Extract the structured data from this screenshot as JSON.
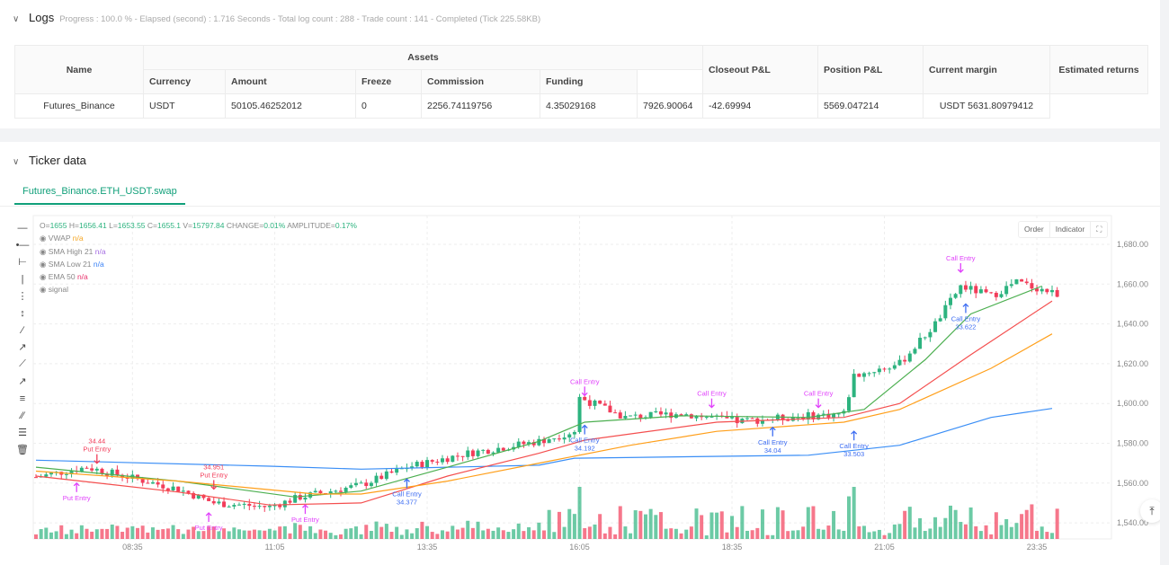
{
  "logs": {
    "title": "Logs",
    "summary": "Progress : 100.0 % - Elapsed (second) : 1.716  Seconds - Total log count : 288 - Trade count : 141 - Completed (Tick 225.58KB)"
  },
  "table": {
    "group_header": "Assets",
    "headers": {
      "name": "Name",
      "currency": "Currency",
      "amount": "Amount",
      "freeze": "Freeze",
      "commission": "Commission",
      "funding": "Funding",
      "closeout": "Closeout P&L",
      "position": "Position P&L",
      "margin": "Current margin",
      "returns": "Estimated returns"
    },
    "row": {
      "name": "Futures_Binance",
      "currency": "USDT",
      "amount": "50105.46252012",
      "freeze": "0",
      "commission": "2256.74119756",
      "funding": "4.35029168",
      "closeout": "7926.90064",
      "position": "-42.69994",
      "margin": "5569.047214",
      "returns": "USDT 5631.80979412"
    }
  },
  "ticker": {
    "title": "Ticker data",
    "tab": "Futures_Binance.ETH_USDT.swap"
  },
  "ohlc": {
    "o_label": "O=",
    "o": "1655",
    "h_label": "H=",
    "h": "1656.41",
    "l_label": "L=",
    "l": "1653.55",
    "c_label": "C=",
    "c": "1655.1",
    "v_label": "V=",
    "v": "15797.84",
    "change_label": "CHANGE=",
    "change": "0.01%",
    "amp_label": "AMPLITUDE=",
    "amp": "0.17%"
  },
  "indicators": [
    {
      "name": "VWAP",
      "value": "n/a",
      "color": "#f5a623"
    },
    {
      "name": "SMA High 21",
      "value": "n/a",
      "color": "#a56de2"
    },
    {
      "name": "SMA Low 21",
      "value": "n/a",
      "color": "#3b82f6"
    },
    {
      "name": "EMA 50",
      "value": "n/a",
      "color": "#e8336d"
    },
    {
      "name": "signal",
      "value": "",
      "color": "#888"
    }
  ],
  "chart_buttons": {
    "order": "Order",
    "indicator": "Indicator"
  },
  "colors": {
    "up": "#2db37f",
    "down": "#f23d5a",
    "vwap": "#3a8ef6",
    "sma_high": "#4caf50",
    "sma_low": "#f44f4f",
    "ema": "#ff9f1a",
    "put": "#e040fb",
    "call": "#3d6df2"
  },
  "chart_data": {
    "type": "candlestick",
    "yticks": [
      "1,680.00",
      "1,660.00",
      "1,640.00",
      "1,620.00",
      "1,600.00",
      "1,580.00",
      "1,560.00",
      "1,540.00"
    ],
    "ylim": [
      1533,
      1690
    ],
    "xticks": [
      {
        "label": "08:35",
        "i": 19
      },
      {
        "label": "11:05",
        "i": 47
      },
      {
        "label": "13:35",
        "i": 77
      },
      {
        "label": "16:05",
        "i": 107
      },
      {
        "label": "18:35",
        "i": 137
      },
      {
        "label": "21:05",
        "i": 167
      },
      {
        "label": "23:35",
        "i": 197
      }
    ],
    "candles": 202,
    "price_path": [
      [
        0,
        1563
      ],
      [
        10,
        1568
      ],
      [
        28,
        1557
      ],
      [
        35,
        1550
      ],
      [
        46,
        1548
      ],
      [
        52,
        1553
      ],
      [
        64,
        1559
      ],
      [
        73,
        1568
      ],
      [
        85,
        1575
      ],
      [
        99,
        1581
      ],
      [
        106,
        1586
      ],
      [
        107,
        1603
      ],
      [
        116,
        1593
      ],
      [
        127,
        1595
      ],
      [
        138,
        1591
      ],
      [
        148,
        1593
      ],
      [
        159,
        1595
      ],
      [
        161,
        1614
      ],
      [
        170,
        1620
      ],
      [
        177,
        1640
      ],
      [
        182,
        1659
      ],
      [
        188,
        1654
      ],
      [
        193,
        1661
      ],
      [
        201,
        1655
      ]
    ],
    "series": [
      {
        "name": "VWAP",
        "color_key": "vwap",
        "points": [
          [
            0,
            1571.5
          ],
          [
            46,
            1568.5
          ],
          [
            64,
            1567
          ],
          [
            99,
            1569
          ],
          [
            106,
            1572.5
          ],
          [
            152,
            1574
          ],
          [
            170,
            1579
          ],
          [
            179,
            1586
          ],
          [
            188,
            1593
          ],
          [
            200,
            1597.5
          ]
        ]
      },
      {
        "name": "SMA High 21",
        "color_key": "sma_high",
        "points": [
          [
            0,
            1568
          ],
          [
            28,
            1561
          ],
          [
            51,
            1553
          ],
          [
            64,
            1556
          ],
          [
            81,
            1568
          ],
          [
            99,
            1581
          ],
          [
            108,
            1590.6
          ],
          [
            127,
            1593.8
          ],
          [
            152,
            1593
          ],
          [
            163,
            1597
          ],
          [
            175,
            1622
          ],
          [
            184,
            1645
          ],
          [
            198,
            1659
          ]
        ]
      },
      {
        "name": "SMA Low 21",
        "color_key": "sma_low",
        "points": [
          [
            0,
            1563.5
          ],
          [
            28,
            1555.5
          ],
          [
            46,
            1549
          ],
          [
            64,
            1550
          ],
          [
            81,
            1563.5
          ],
          [
            99,
            1575
          ],
          [
            108,
            1581.6
          ],
          [
            134,
            1590.6
          ],
          [
            159,
            1593
          ],
          [
            170,
            1600
          ],
          [
            184,
            1624.5
          ],
          [
            200,
            1651.5
          ]
        ]
      },
      {
        "name": "EMA 50",
        "color_key": "ema",
        "points": [
          [
            0,
            1566
          ],
          [
            28,
            1561
          ],
          [
            55,
            1554.5
          ],
          [
            64,
            1554.5
          ],
          [
            81,
            1561
          ],
          [
            99,
            1570
          ],
          [
            117,
            1579
          ],
          [
            134,
            1586
          ],
          [
            159,
            1590.6
          ],
          [
            170,
            1597
          ],
          [
            188,
            1617.7
          ],
          [
            200,
            1635
          ]
        ]
      }
    ],
    "annotations": [
      {
        "text": "Put Entry",
        "value": "34.44",
        "i": 12,
        "price": 1570,
        "dir": "down",
        "color_key": "down"
      },
      {
        "text": "Put Entry",
        "value": "",
        "i": 8,
        "price": 1560,
        "dir": "up",
        "color_key": "put"
      },
      {
        "text": "Put Entry",
        "value": "34.951",
        "i": 35,
        "price": 1557,
        "dir": "down",
        "color_key": "down"
      },
      {
        "text": "Put Entry",
        "value": "",
        "i": 34,
        "price": 1545,
        "dir": "up",
        "color_key": "put"
      },
      {
        "text": "Put Entry",
        "value": "",
        "i": 53,
        "price": 1549,
        "dir": "up",
        "color_key": "put"
      },
      {
        "text": "Call Entry",
        "value": "34.377",
        "i": 73,
        "price": 1562,
        "dir": "up",
        "color_key": "call"
      },
      {
        "text": "Call Entry",
        "value": "34.192",
        "i": 108,
        "price": 1589,
        "dir": "up",
        "color_key": "call"
      },
      {
        "text": "Call Entry",
        "value": "",
        "i": 108,
        "price": 1604,
        "dir": "down",
        "color_key": "put"
      },
      {
        "text": "Call Entry",
        "value": "",
        "i": 133,
        "price": 1598,
        "dir": "down",
        "color_key": "put"
      },
      {
        "text": "Call Entry",
        "value": "34.04",
        "i": 145,
        "price": 1588,
        "dir": "up",
        "color_key": "call"
      },
      {
        "text": "Call Entry",
        "value": "",
        "i": 154,
        "price": 1598,
        "dir": "down",
        "color_key": "put"
      },
      {
        "text": "Call Entry",
        "value": "33.503",
        "i": 161,
        "price": 1586,
        "dir": "up",
        "color_key": "call"
      },
      {
        "text": "Call Entry",
        "value": "",
        "i": 182,
        "price": 1666,
        "dir": "down",
        "color_key": "put"
      },
      {
        "text": "Call Entry",
        "value": "33.622",
        "i": 183,
        "price": 1650,
        "dir": "up",
        "color_key": "call"
      }
    ]
  }
}
